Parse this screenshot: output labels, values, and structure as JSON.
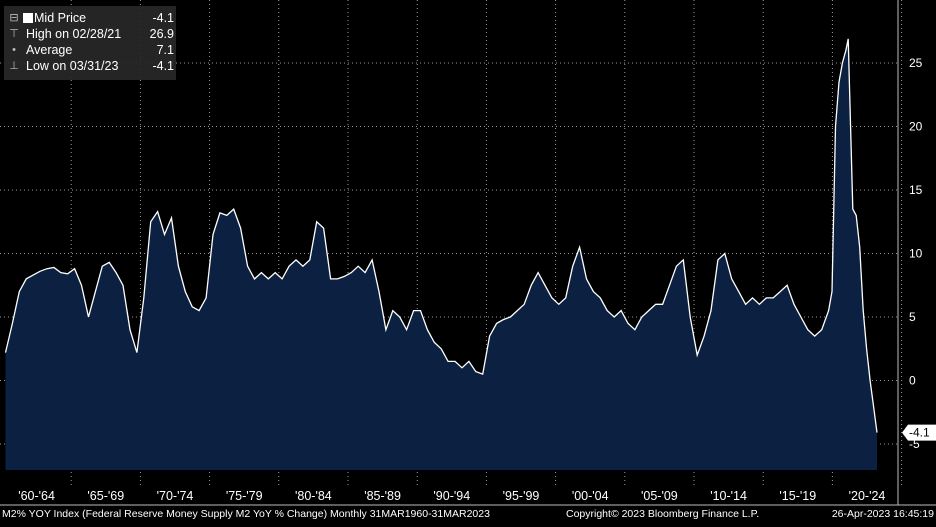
{
  "legend": {
    "mid_price": {
      "label": "Mid Price",
      "value": "-4.1"
    },
    "high": {
      "label": "High on 02/28/21",
      "value": "26.9"
    },
    "average": {
      "label": "Average",
      "value": "7.1"
    },
    "low": {
      "label": "Low on 03/31/23",
      "value": "-4.1"
    }
  },
  "footer": {
    "description": "M2% YOY Index (Federal Reserve Money Supply M2 YoY % Change)  Monthly 31MAR1960-31MAR2023",
    "copyright": "Copyright© 2023 Bloomberg Finance L.P.",
    "timestamp": "26-Apr-2023 16:45:19"
  },
  "colors": {
    "background": "#000000",
    "fill": "#0c2141",
    "line": "#ffffff",
    "grid": "#9a9a9a"
  },
  "chart_data": {
    "type": "area",
    "y_tick_labels": [
      "25",
      "20",
      "15",
      "10",
      "5",
      "0",
      "-5"
    ],
    "y_ticks": [
      25,
      20,
      15,
      10,
      5,
      0,
      -5
    ],
    "ylim": [
      -7,
      30
    ],
    "x_tick_labels": [
      "'60-'64",
      "'65-'69",
      "'70-'74",
      "'75-'79",
      "'80-'84",
      "'85-'89",
      "'90-'94",
      "'95-'99",
      "'00-'04",
      "'05-'09",
      "'10-'14",
      "'15-'19",
      "'20-'24"
    ],
    "xlim": [
      1960.0,
      2025.0
    ],
    "last_value_label": "-4.1",
    "last_value": -4.1,
    "grid": true,
    "series": [
      {
        "x": [
          1960.25,
          1960.75,
          1961.25,
          1961.75,
          1962.25,
          1962.75,
          1963.25,
          1963.75,
          1964.25,
          1964.75,
          1965.25,
          1965.75,
          1966.25,
          1966.75,
          1967.25,
          1967.75,
          1968.25,
          1968.75,
          1969.25,
          1969.75,
          1970.25,
          1970.75,
          1971.25,
          1971.75,
          1972.25,
          1972.75,
          1973.25,
          1973.75,
          1974.25,
          1974.75,
          1975.25,
          1975.75,
          1976.25,
          1976.75,
          1977.25,
          1977.75,
          1978.25,
          1978.75,
          1979.25,
          1979.75,
          1980.25,
          1980.75,
          1981.25,
          1981.75,
          1982.25,
          1982.75,
          1983.25,
          1983.75,
          1984.25,
          1984.75,
          1985.25,
          1985.75,
          1986.25,
          1986.75,
          1987.25,
          1987.75,
          1988.25,
          1988.75,
          1989.25,
          1989.75,
          1990.25,
          1990.75,
          1991.25,
          1991.75,
          1992.25,
          1992.75,
          1993.25,
          1993.75,
          1994.25,
          1994.75,
          1995.25,
          1995.75,
          1996.25,
          1996.75,
          1997.25,
          1997.75,
          1998.25,
          1998.75,
          1999.25,
          1999.75,
          2000.25,
          2000.75,
          2001.25,
          2001.75,
          2002.25,
          2002.75,
          2003.25,
          2003.75,
          2004.25,
          2004.75,
          2005.25,
          2005.75,
          2006.25,
          2006.75,
          2007.25,
          2007.75,
          2008.25,
          2008.75,
          2009.25,
          2009.75,
          2010.25,
          2010.75,
          2011.25,
          2011.75,
          2012.25,
          2012.75,
          2013.25,
          2013.75,
          2014.25,
          2014.75,
          2015.25,
          2015.75,
          2016.25,
          2016.75,
          2017.25,
          2017.75,
          2018.25,
          2018.75,
          2019.25,
          2019.75,
          2020.0,
          2020.25,
          2020.5,
          2020.75,
          2021.0,
          2021.17,
          2021.5,
          2021.75,
          2022.0,
          2022.25,
          2022.5,
          2022.75,
          2023.0,
          2023.25
        ],
        "values": [
          2.2,
          4.5,
          7.0,
          8.0,
          8.3,
          8.6,
          8.8,
          8.9,
          8.5,
          8.4,
          8.8,
          7.5,
          5.0,
          7.0,
          9.0,
          9.3,
          8.5,
          7.5,
          4.0,
          2.2,
          6.5,
          12.5,
          13.3,
          11.5,
          12.8,
          9.0,
          7.0,
          5.8,
          5.5,
          6.5,
          11.5,
          13.2,
          13.0,
          13.5,
          12.0,
          9.0,
          8.0,
          8.5,
          8.0,
          8.5,
          8.0,
          9.0,
          9.5,
          9.0,
          9.5,
          12.5,
          12.0,
          8.0,
          8.0,
          8.2,
          8.5,
          9.0,
          8.5,
          9.5,
          7.0,
          4.0,
          5.5,
          5.0,
          4.0,
          5.5,
          5.5,
          4.0,
          3.0,
          2.5,
          1.5,
          1.5,
          1.0,
          1.5,
          0.7,
          0.5,
          3.5,
          4.5,
          4.8,
          5.0,
          5.5,
          6.0,
          7.5,
          8.5,
          7.5,
          6.5,
          6.0,
          6.5,
          9.0,
          10.5,
          8.0,
          7.0,
          6.5,
          5.5,
          5.0,
          5.5,
          4.5,
          4.0,
          5.0,
          5.5,
          6.0,
          6.0,
          7.5,
          9.0,
          9.5,
          5.0,
          2.0,
          3.5,
          5.5,
          9.5,
          10.0,
          8.0,
          7.0,
          6.0,
          6.5,
          6.0,
          6.5,
          6.5,
          7.0,
          7.5,
          6.0,
          5.0,
          4.0,
          3.5,
          4.0,
          5.5,
          7.0,
          20.0,
          23.5,
          25.0,
          26.0,
          26.9,
          13.5,
          13.0,
          10.5,
          5.5,
          2.5,
          0.0,
          -2.0,
          -4.1
        ]
      }
    ]
  }
}
